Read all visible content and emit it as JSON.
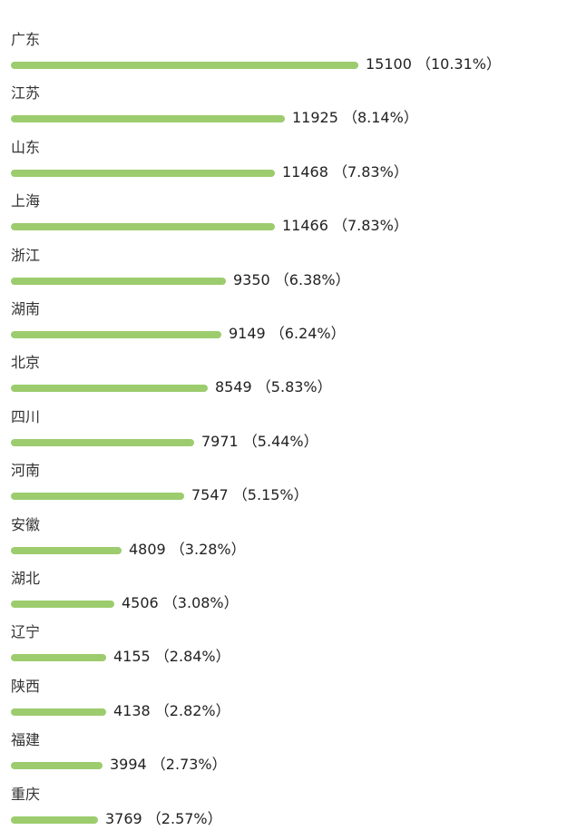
{
  "chart_data": {
    "type": "bar",
    "orientation": "horizontal",
    "bar_color": "#9ccc6e",
    "categories": [
      "广东",
      "江苏",
      "山东",
      "上海",
      "浙江",
      "湖南",
      "北京",
      "四川",
      "河南",
      "安徽",
      "湖北",
      "辽宁",
      "陕西",
      "福建",
      "重庆"
    ],
    "values": [
      15100,
      11925,
      11468,
      11466,
      9350,
      9149,
      8549,
      7971,
      7547,
      4809,
      4506,
      4155,
      4138,
      3994,
      3769
    ],
    "percent_labels": [
      "10.31%",
      "8.14%",
      "7.83%",
      "7.83%",
      "6.38%",
      "6.24%",
      "5.83%",
      "5.44%",
      "5.15%",
      "3.28%",
      "3.08%",
      "2.84%",
      "2.82%",
      "2.73%",
      "2.57%"
    ],
    "value_labels": [
      "15100 （10.31%）",
      "11925 （8.14%）",
      "11468 （7.83%）",
      "11466 （7.83%）",
      "9350 （6.38%）",
      "9149 （6.24%）",
      "8549 （5.83%）",
      "7971 （5.44%）",
      "7547 （5.15%）",
      "4809 （3.28%）",
      "4506 （3.08%）",
      "4155 （2.84%）",
      "4138 （2.82%）",
      "3994 （2.73%）",
      "3769 （2.57%）"
    ]
  }
}
